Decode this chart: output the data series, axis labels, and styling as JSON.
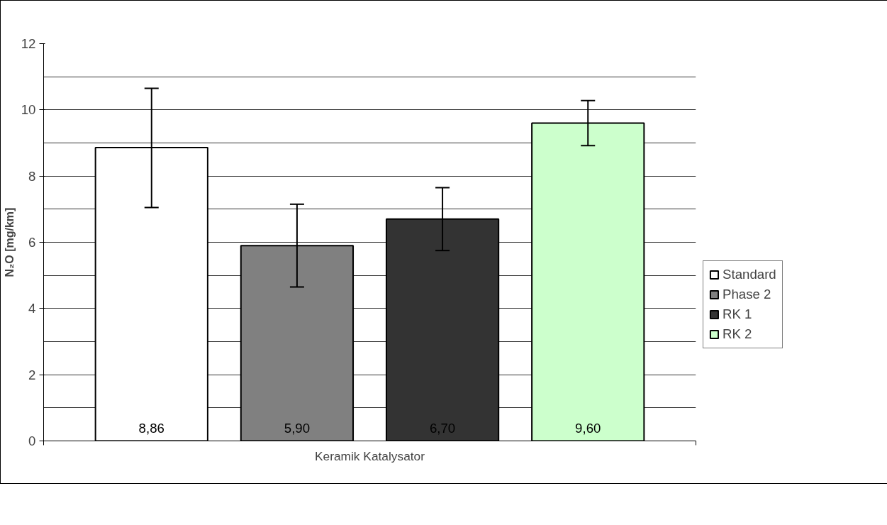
{
  "chart_data": {
    "type": "bar",
    "xlabel": "Keramik Katalysator",
    "ylabel": "N₂O [mg/km]",
    "categories": [
      null
    ],
    "series": [
      {
        "name": "Standard",
        "color": "#ffffff",
        "values": [
          8.86
        ],
        "errors": [
          [
            7.05,
            10.65
          ]
        ],
        "value_labels": [
          "8,86"
        ]
      },
      {
        "name": "Phase 2",
        "color": "#808080",
        "values": [
          5.9
        ],
        "errors": [
          [
            4.65,
            7.15
          ]
        ],
        "value_labels": [
          "5,90"
        ]
      },
      {
        "name": "RK 1",
        "color": "#333333",
        "values": [
          6.7
        ],
        "errors": [
          [
            5.75,
            7.65
          ]
        ],
        "value_labels": [
          "6,70"
        ]
      },
      {
        "name": "RK 2",
        "color": "#ccffcc",
        "values": [
          9.6
        ],
        "errors": [
          [
            8.92,
            10.28
          ]
        ],
        "value_labels": [
          "9,60"
        ]
      }
    ],
    "ylim": [
      0,
      12
    ],
    "yticks": [
      0,
      {
        "value": 1,
        "label": null
      },
      2,
      {
        "value": 3,
        "label": null
      },
      4,
      {
        "value": 5,
        "label": null
      },
      6,
      {
        "value": 7,
        "label": null
      },
      8,
      {
        "value": 9,
        "label": null
      },
      10,
      {
        "value": 11,
        "label": null
      },
      12
    ],
    "grid": "y",
    "legend": "right"
  }
}
